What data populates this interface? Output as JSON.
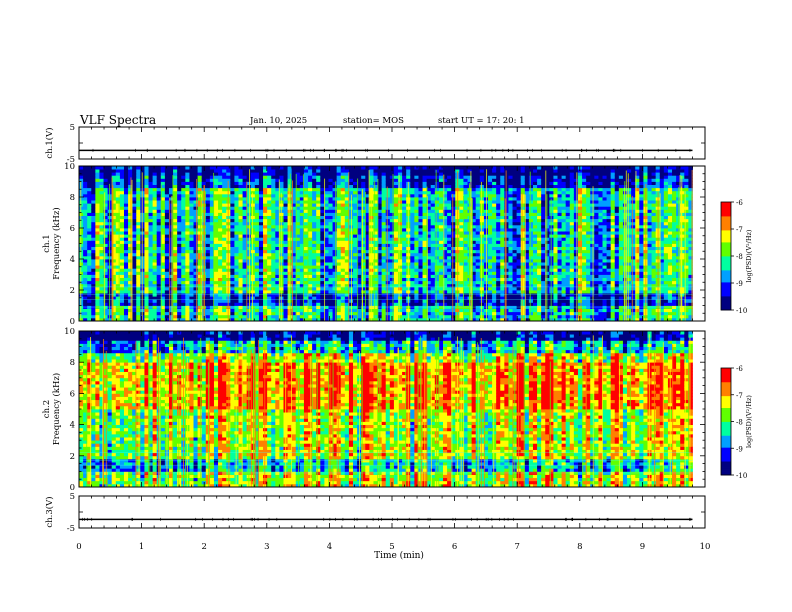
{
  "header": {
    "title": "VLF Spectra",
    "date": "Jan. 10, 2025",
    "station": "station= MOS",
    "start": "start  UT =   17: 20: 1"
  },
  "chart_data": [
    {
      "type": "line",
      "panel": "ch1-waveform",
      "ylabel": "ch.1(V)",
      "ylim": [
        -5,
        5
      ],
      "yticks": [
        "5",
        "-5"
      ],
      "xlim": [
        0,
        10
      ],
      "series": [
        {
          "x": [
            0,
            9.8
          ],
          "values": [
            -2.3,
            -2.3
          ]
        }
      ]
    },
    {
      "type": "heatmap",
      "panel": "ch1-spectrogram",
      "ylabel": "ch.1\nFrequency (kHz)",
      "ylim": [
        0,
        10
      ],
      "yticks": [
        "0",
        "2",
        "4",
        "6",
        "8",
        "10"
      ],
      "xlim": [
        0,
        10
      ],
      "data_x_max": 9.8,
      "colorbar": {
        "label": "log(PSD)(V²/Hz)",
        "range": [
          -10,
          -6
        ],
        "ticks": [
          "-6",
          "-7",
          "-8",
          "-9",
          "-10"
        ]
      },
      "colormap": [
        "#000080",
        "#0000ff",
        "#00a0ff",
        "#00ffa0",
        "#60ff00",
        "#ffff00",
        "#ff8000",
        "#ff0000",
        "#ffffff"
      ],
      "level_mean": 0.42
    },
    {
      "type": "heatmap",
      "panel": "ch2-spectrogram",
      "ylabel": "ch.2\nFrequency (kHz)",
      "ylim": [
        0,
        10
      ],
      "yticks": [
        "0",
        "2",
        "4",
        "6",
        "8",
        "10"
      ],
      "xlim": [
        0,
        10
      ],
      "data_x_max": 9.8,
      "colorbar": {
        "label": "log(PSD)(V²/Hz)",
        "range": [
          -10,
          -6
        ],
        "ticks": [
          "-6",
          "-7",
          "-8",
          "-9",
          "-10"
        ]
      },
      "colormap": [
        "#000080",
        "#0000ff",
        "#00a0ff",
        "#00ffa0",
        "#60ff00",
        "#ffff00",
        "#ff8000",
        "#ff0000",
        "#ffffff"
      ],
      "level_mean": 0.62
    },
    {
      "type": "line",
      "panel": "ch3-waveform",
      "ylabel": "ch.3(V)",
      "ylim": [
        -5,
        5
      ],
      "yticks": [
        "5",
        "-5"
      ],
      "xlim": [
        0,
        10
      ],
      "series": [
        {
          "x": [
            0,
            9.8
          ],
          "values": [
            -2.3,
            -2.3
          ]
        }
      ]
    }
  ],
  "xaxis": {
    "label": "Time  (min)",
    "ticks": [
      "0",
      "1",
      "2",
      "3",
      "4",
      "5",
      "6",
      "7",
      "8",
      "9",
      "10"
    ]
  }
}
